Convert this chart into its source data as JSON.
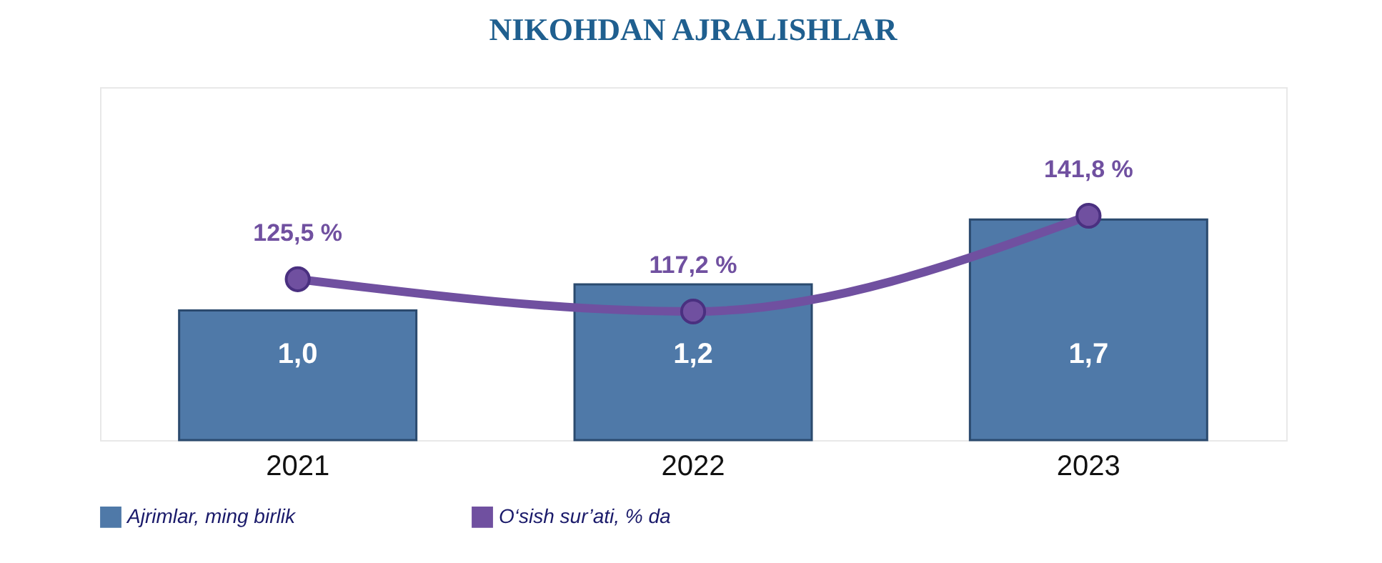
{
  "chart_data": {
    "type": "bar",
    "title": "NIKOHDAN AJRALISHLAR",
    "categories": [
      "2021",
      "2022",
      "2023"
    ],
    "ylim": [
      0,
      2.72
    ],
    "tick_labels": "x",
    "legend": "bottom",
    "marker": "circle",
    "series": [
      {
        "name": "Ajrimlar, ming birlik",
        "color": "#4f79a8",
        "values": [
          1.0,
          1.2,
          1.7
        ],
        "value_labels": [
          "1,0",
          "1,2",
          "1,7"
        ]
      },
      {
        "name": "O‘sish sur’ati, % da",
        "type": "line",
        "axis": "y2",
        "color": "#7050a0",
        "values": [
          125.5,
          117.2,
          141.8
        ],
        "value_labels": [
          "125,5 %",
          "117,2 %",
          "141,8 %"
        ]
      }
    ]
  }
}
